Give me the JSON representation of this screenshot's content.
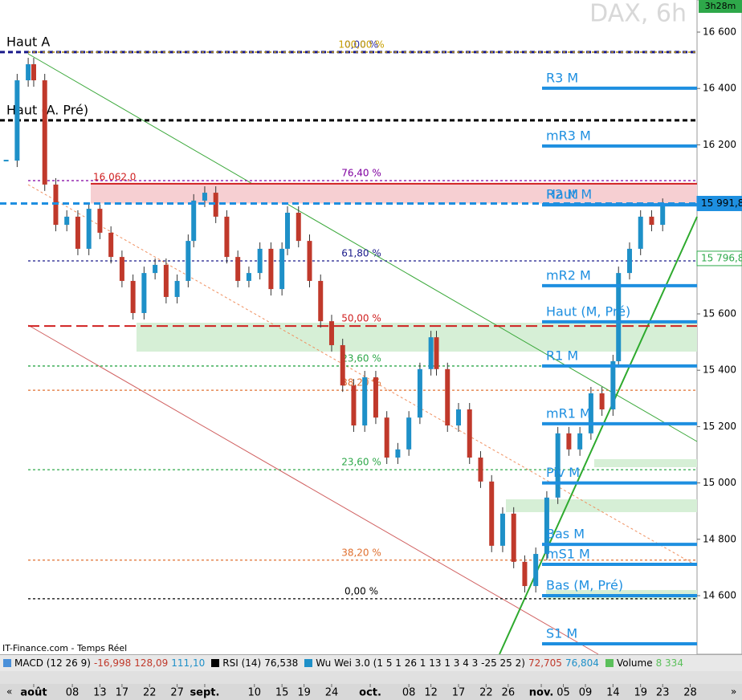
{
  "header": {
    "title": "DAX, 6h",
    "timer": "3h28m",
    "source": "IT-Finance.com - Temps Réel"
  },
  "indicators": [
    {
      "name": "MACD (12 26 9)",
      "values": [
        "-16,998",
        "128,09",
        "111,10"
      ]
    },
    {
      "name": "RSI (14)",
      "values": [
        "76,538"
      ]
    },
    {
      "name": "Wu Wei 3.0 (1 5 1 26 1 13 1 3 4 3 -25 25 2)",
      "values": [
        "72,705",
        "76,804"
      ]
    },
    {
      "name": "Volume",
      "values": [
        "8 334"
      ]
    }
  ],
  "chart_data": {
    "type": "candlestick",
    "x": [
      -5,
      -3,
      -1,
      0,
      2,
      4,
      6,
      8,
      10,
      12,
      14,
      16,
      18,
      20,
      22,
      24,
      26,
      28,
      29,
      31,
      33,
      35,
      37,
      39,
      41,
      43,
      45,
      46,
      48,
      50,
      52,
      54,
      56,
      58,
      60,
      62,
      64,
      66,
      68,
      70,
      72,
      73,
      75,
      77,
      79,
      81,
      83,
      85,
      87,
      89,
      91,
      93,
      95,
      97,
      99,
      101,
      103,
      105,
      106,
      108,
      110,
      112,
      114
    ],
    "values": [
      16144,
      16429,
      16486,
      16429,
      16059,
      15916,
      15945,
      15831,
      15973,
      15888,
      15802,
      15717,
      15603,
      15745,
      15774,
      15660,
      15717,
      15859,
      16002,
      16030,
      15945,
      15802,
      15717,
      15745,
      15831,
      15688,
      15831,
      15959,
      15859,
      15717,
      15574,
      15489,
      15346,
      15204,
      15375,
      15232,
      15090,
      15119,
      15232,
      15404,
      15517,
      15404,
      15204,
      15261,
      15090,
      15005,
      14777,
      14891,
      14720,
      14634,
      14748,
      14948,
      15176,
      15119,
      15176,
      15318,
      15261,
      15432,
      15745,
      15831,
      15945,
      15916,
      15987
    ],
    "up_color": "#1e90c8",
    "down_color": "#c0392b",
    "xlim": [
      -6.11,
      120.23
    ],
    "ylim": [
      14392,
      16714
    ],
    "xticks": [
      {
        "value": 0,
        "label": "août"
      },
      {
        "value": 7,
        "label": "08"
      },
      {
        "value": 12,
        "label": "13"
      },
      {
        "value": 16,
        "label": "17"
      },
      {
        "value": 21,
        "label": "22"
      },
      {
        "value": 26,
        "label": "27"
      },
      {
        "value": 31,
        "label": "sept."
      },
      {
        "value": 40,
        "label": "10"
      },
      {
        "value": 45,
        "label": "15"
      },
      {
        "value": 49,
        "label": "19"
      },
      {
        "value": 54,
        "label": "24"
      },
      {
        "value": 61,
        "label": "oct."
      },
      {
        "value": 68,
        "label": "08"
      },
      {
        "value": 72,
        "label": "12"
      },
      {
        "value": 77,
        "label": "17"
      },
      {
        "value": 82,
        "label": "22"
      },
      {
        "value": 86,
        "label": "26"
      },
      {
        "value": 92,
        "label": "nov."
      },
      {
        "value": 96,
        "label": "05"
      },
      {
        "value": 100,
        "label": "09"
      },
      {
        "value": 105,
        "label": "14"
      },
      {
        "value": 110,
        "label": "19"
      },
      {
        "value": 114,
        "label": "23"
      },
      {
        "value": 119,
        "label": "28"
      }
    ],
    "yticks": [
      {
        "value": 16600,
        "label": "16 600"
      },
      {
        "value": 16400,
        "label": "16 400"
      },
      {
        "value": 16200,
        "label": "16 200"
      },
      {
        "value": 15600,
        "label": "15 600"
      },
      {
        "value": 15400,
        "label": "15 400"
      },
      {
        "value": 15200,
        "label": "15 200"
      },
      {
        "value": 15000,
        "label": "15 000"
      },
      {
        "value": 14800,
        "label": "14 800"
      },
      {
        "value": 14600,
        "label": "14 600"
      }
    ],
    "price_labels": [
      {
        "value": 15991.8,
        "label": "15 991,8",
        "color": "#1e8fe0"
      },
      {
        "value": 15796.8,
        "label": "15 796,8",
        "color": "#2ea84a"
      }
    ],
    "levels": [
      {
        "label": "Haut A",
        "value": 16529,
        "color": "#1a1a8a"
      },
      {
        "label": "Haut (A. Pré)",
        "value": 16287,
        "color": "#000000"
      }
    ],
    "zone": {
      "label": "16 062,0",
      "value": 16062,
      "color": "#d02020"
    },
    "fib_levels": [
      {
        "label": "0,00 %",
        "value": 16529,
        "color": "#2a2aa0"
      },
      {
        "label": "100,00 %",
        "value": 16529,
        "color": "#c8a000"
      },
      {
        "label": "76,40 %",
        "value": 16073,
        "color": "#8000a0"
      },
      {
        "label": "61,80 %",
        "value": 15788,
        "color": "#1a1a8a"
      },
      {
        "label": "50,00 %",
        "value": 15557,
        "color": "#d02020"
      },
      {
        "label": "23,60 %",
        "value": 15415,
        "color": "#2ea84a"
      },
      {
        "label": "38,20 %",
        "value": 15329,
        "color": "#e07030"
      },
      {
        "label": "23,60 %",
        "value": 15047,
        "color": "#2ea84a"
      },
      {
        "label": "38,20 %",
        "value": 14726,
        "color": "#e07030"
      },
      {
        "label": "0,00 %",
        "value": 14589,
        "color": "#000000"
      }
    ],
    "pivot_color": "#1e8fe0",
    "pivots": [
      {
        "label": "R3 M",
        "value": 16401
      },
      {
        "label": "mR3 M",
        "value": 16196
      },
      {
        "label": "Haut M",
        "value": 15987
      },
      {
        "label": "R2 M",
        "value": 15987
      },
      {
        "label": "mR2 M",
        "value": 15700
      },
      {
        "label": "Haut (M, Pré)",
        "value": 15572
      },
      {
        "label": "R1 M",
        "value": 15415
      },
      {
        "label": "mR1 M",
        "value": 15210
      },
      {
        "label": "Piv M",
        "value": 15000
      },
      {
        "label": "Bas M",
        "value": 14782
      },
      {
        "label": "mS1 M",
        "value": 14711
      },
      {
        "label": "Bas (M, Pré)",
        "value": 14600
      },
      {
        "label": "S1 M",
        "value": 14429
      }
    ]
  }
}
